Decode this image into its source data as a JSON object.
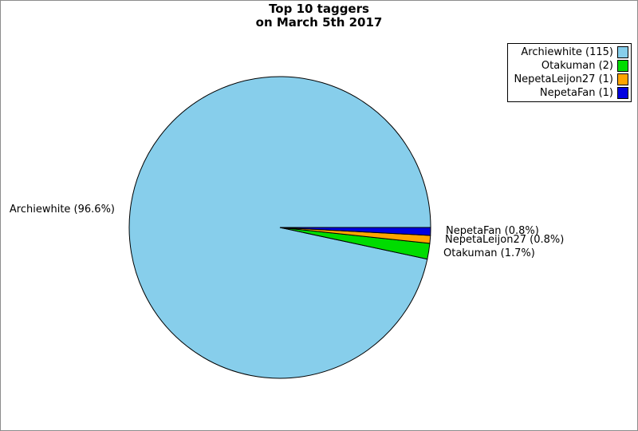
{
  "page": {
    "background": "#ffffff",
    "frame_color": "#8c8c8c"
  },
  "chart_data": {
    "type": "pie",
    "title": "Top 10 taggers",
    "subtitle": "on March 5th 2017",
    "legend_position": "top-right",
    "start_angle_deg": 0,
    "direction": "counterclockwise",
    "stroke_color": "#000000",
    "slices": [
      {
        "name": "Archiewhite",
        "value": 115,
        "pct": 96.6,
        "pct_label": "Archiewhite (96.6%)",
        "legend_label": "Archiewhite (115)",
        "color": "#87CEEB"
      },
      {
        "name": "Otakuman",
        "value": 2,
        "pct": 1.7,
        "pct_label": "Otakuman (1.7%)",
        "legend_label": "Otakuman (2)",
        "color": "#00DC00"
      },
      {
        "name": "NepetaLeijon27",
        "value": 1,
        "pct": 0.8,
        "pct_label": "NepetaLeijon27 (0.8%)",
        "legend_label": "NepetaLeijon27 (1)",
        "color": "#FFA500"
      },
      {
        "name": "NepetaFan",
        "value": 1,
        "pct": 0.8,
        "pct_label": "NepetaFan (0.8%)",
        "legend_label": "NepetaFan (1)",
        "color": "#0000E0"
      }
    ]
  }
}
